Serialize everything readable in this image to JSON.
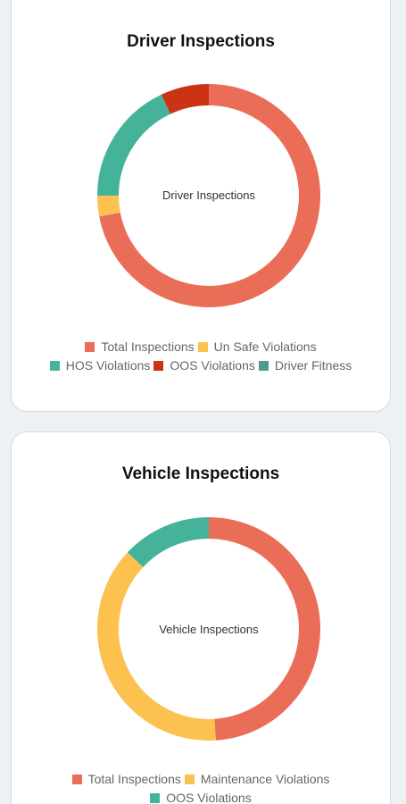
{
  "chart_data": [
    {
      "type": "pie",
      "title": "Driver Inspections",
      "center_label": "Driver Inspections",
      "legend_placement": "bottom",
      "categories": [
        "Total Inspections",
        "Un Safe Violations",
        "HOS Violations",
        "OOS Violations",
        "Driver Fitness"
      ],
      "values": [
        72,
        3,
        18,
        7,
        0
      ],
      "colors": [
        "#ea6e57",
        "#fcc14f",
        "#45b39a",
        "#cc3214",
        "#4f9a90"
      ],
      "legend_rows": [
        [
          0,
          1
        ],
        [
          2,
          3,
          4
        ]
      ]
    },
    {
      "type": "pie",
      "title": "Vehicle Inspections",
      "center_label": "Vehicle Inspections",
      "legend_placement": "bottom",
      "categories": [
        "Total Inspections",
        "Maintenance Violations",
        "OOS Violations"
      ],
      "values": [
        49,
        38,
        13
      ],
      "colors": [
        "#ea6e57",
        "#fcc14f",
        "#45b39a"
      ],
      "legend_rows": [
        [
          0,
          1
        ],
        [
          2
        ]
      ]
    }
  ]
}
